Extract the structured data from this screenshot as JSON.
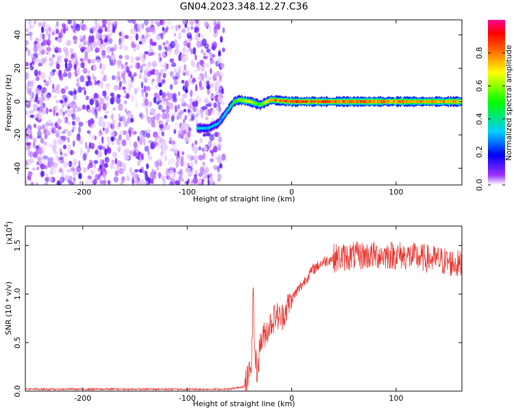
{
  "title": "GN04.2023.348.12.27.C36",
  "chart_data": [
    {
      "type": "heatmap",
      "xlabel": "Height of straight line (km)",
      "ylabel": "Frequency (Hz)",
      "xlim": [
        -255,
        163
      ],
      "ylim": [
        -50,
        49
      ],
      "x_ticks": [
        -200,
        -100,
        0,
        100
      ],
      "y_ticks": [
        -40,
        -20,
        0,
        20,
        40
      ],
      "colorbar": {
        "label": "Normalized spectral amplitude",
        "range": [
          0,
          1
        ],
        "ticks": [
          0.0,
          0.2,
          0.4,
          0.6,
          0.8
        ],
        "colors": [
          "#ffffff",
          "#7f00ff",
          "#0000ff",
          "#00ffff",
          "#00ff00",
          "#ffff00",
          "#ff7f00",
          "#ff0000",
          "#ff0080"
        ]
      },
      "noise_region_x": [
        -255,
        -65
      ],
      "signal_track": {
        "x": [
          -90,
          -80,
          -70,
          -62,
          -55,
          -50,
          -40,
          -30,
          -20,
          0,
          50,
          100,
          163
        ],
        "y": [
          -16,
          -16,
          -13,
          -6,
          0,
          1,
          0,
          -2,
          1,
          0,
          0,
          0,
          0
        ],
        "amplitude": [
          0.35,
          0.3,
          0.3,
          0.35,
          0.5,
          0.6,
          0.65,
          0.5,
          0.75,
          0.85,
          0.8,
          0.8,
          0.75
        ]
      }
    },
    {
      "type": "line",
      "xlabel": "Height of straight line (km)",
      "ylabel": "SNR (10 * v/v)",
      "y_multiplier": "(x10",
      "y_multiplier_exp": "4",
      "y_multiplier_close": ")",
      "xlim": [
        -255,
        163
      ],
      "ylim": [
        0,
        1.7
      ],
      "x_ticks": [
        -200,
        -100,
        0,
        100
      ],
      "y_ticks": [
        0.0,
        0.5,
        1.0,
        1.5
      ],
      "color": "#e8332e",
      "series": [
        {
          "x": [
            -255,
            -200,
            -150,
            -100,
            -60,
            -45,
            -40,
            -38,
            -37,
            -36,
            -35,
            -33,
            -30,
            -25,
            -20,
            -15,
            -10,
            -5,
            0,
            10,
            20,
            30,
            40,
            50,
            60,
            80,
            100,
            120,
            140,
            163
          ],
          "y": [
            0.02,
            0.02,
            0.02,
            0.02,
            0.02,
            0.05,
            0.2,
            0.4,
            1.15,
            0.6,
            0.35,
            0.2,
            0.5,
            0.6,
            0.7,
            0.78,
            0.75,
            0.85,
            0.95,
            1.1,
            1.25,
            1.33,
            1.37,
            1.38,
            1.39,
            1.4,
            1.4,
            1.38,
            1.35,
            1.3
          ]
        }
      ]
    }
  ]
}
